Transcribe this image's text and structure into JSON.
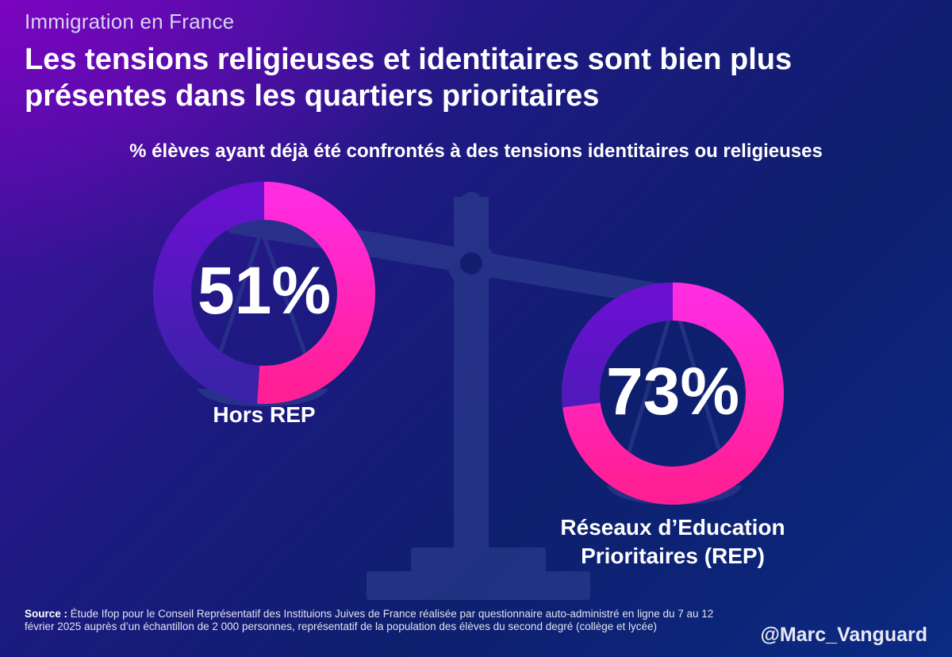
{
  "kicker": "Immigration en France",
  "title": "Les tensions religieuses et identitaires sont bien plus présentes dans les quartiers prioritaires",
  "handle": "@Marc_Vanguard",
  "source": {
    "label": "Source :",
    "text": "Étude Ifop pour le Conseil Représentatif des Instituions Juives de France réalisée par questionnaire auto-administré en ligne du 7 au 12 février 2025 auprès d’un échantillon de 2 000 personnes, représentatif de la population des élèves du second degré (collège et lycée)"
  },
  "background_icon": "balance-scale-icon",
  "colors": {
    "ring_track": "#5a18c0",
    "ring_fill_start": "#ff2cd2",
    "ring_fill_end": "#ff1f9a",
    "ring_track_end": "#3a1fa8",
    "scale": "#2b3a8c"
  },
  "chart_data": {
    "type": "donut",
    "title": "% élèves ayant déjà été confrontés à des tensions identitaires ou religieuses",
    "unit": "%",
    "categories": [
      "Hors REP",
      "Réseaux d’Education Prioritaires (REP)"
    ],
    "category_lines": [
      [
        "Hors REP"
      ],
      [
        "Réseaux d’Education",
        "Prioritaires (REP)"
      ]
    ],
    "values": [
      51,
      73
    ],
    "value_labels": [
      "51%",
      "73%"
    ],
    "range": [
      0,
      100
    ]
  }
}
